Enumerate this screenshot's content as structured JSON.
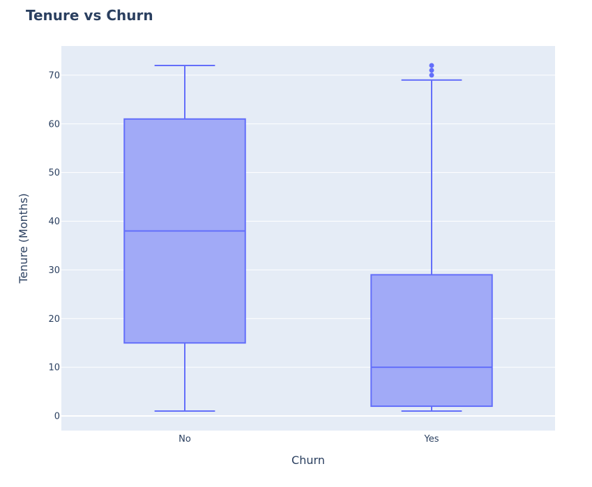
{
  "chart_data": {
    "type": "box",
    "title": "Tenure vs Churn",
    "xlabel": "Churn",
    "ylabel": "Tenure (Months)",
    "ylim": [
      -3,
      76
    ],
    "yticks": [
      0,
      10,
      20,
      30,
      40,
      50,
      60,
      70
    ],
    "grid": true,
    "colors": {
      "plot_bg": "#e5ecf6",
      "grid": "#ffffff",
      "box_fill": "#a1aaf7",
      "box_line": "#636efa",
      "text": "#2a3f5f"
    },
    "categories": [
      "No",
      "Yes"
    ],
    "boxes": [
      {
        "category": "No",
        "min": 1,
        "q1": 15,
        "median": 38,
        "q3": 61,
        "max": 72,
        "outliers": []
      },
      {
        "category": "Yes",
        "min": 1,
        "q1": 2,
        "median": 10,
        "q3": 29,
        "max": 69,
        "outliers": [
          70,
          71,
          72
        ]
      }
    ]
  }
}
